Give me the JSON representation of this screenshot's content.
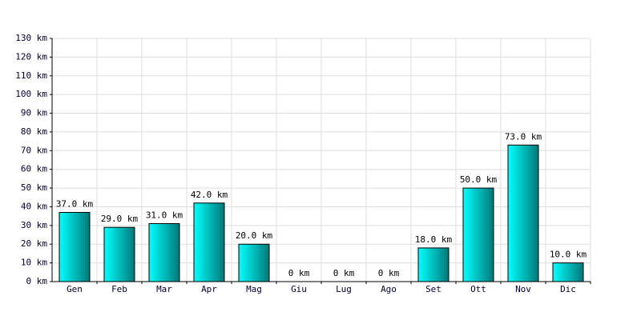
{
  "chart_data": {
    "type": "bar",
    "categories": [
      "Gen",
      "Feb",
      "Mar",
      "Apr",
      "Mag",
      "Giu",
      "Lug",
      "Ago",
      "Set",
      "Ott",
      "Nov",
      "Dic"
    ],
    "values": [
      37,
      29,
      31,
      42,
      20,
      0,
      0,
      0,
      18,
      50,
      73,
      10
    ],
    "value_labels": [
      "37.0 km",
      "29.0 km",
      "31.0 km",
      "42.0 km",
      "20.0 km",
      "0 km",
      "0 km",
      "0 km",
      "18.0 km",
      "50.0 km",
      "73.0 km",
      "10.0 km"
    ],
    "color": "#00c8c8",
    "ylim": [
      0,
      130
    ],
    "yticks": [
      {
        "value": 0,
        "label": "0 km"
      },
      {
        "value": 10,
        "label": "10 km"
      },
      {
        "value": 20,
        "label": "20 km"
      },
      {
        "value": 30,
        "label": "30 km"
      },
      {
        "value": 40,
        "label": "40 km"
      },
      {
        "value": 50,
        "label": "50 km"
      },
      {
        "value": 60,
        "label": "60 km"
      },
      {
        "value": 70,
        "label": "70 km"
      },
      {
        "value": 80,
        "label": "80 km"
      },
      {
        "value": 90,
        "label": "90 km"
      },
      {
        "value": 100,
        "label": "100 km"
      },
      {
        "value": 110,
        "label": "110 km"
      },
      {
        "value": 120,
        "label": "120 km"
      },
      {
        "value": 130,
        "label": "130 km"
      }
    ],
    "grid": true
  }
}
